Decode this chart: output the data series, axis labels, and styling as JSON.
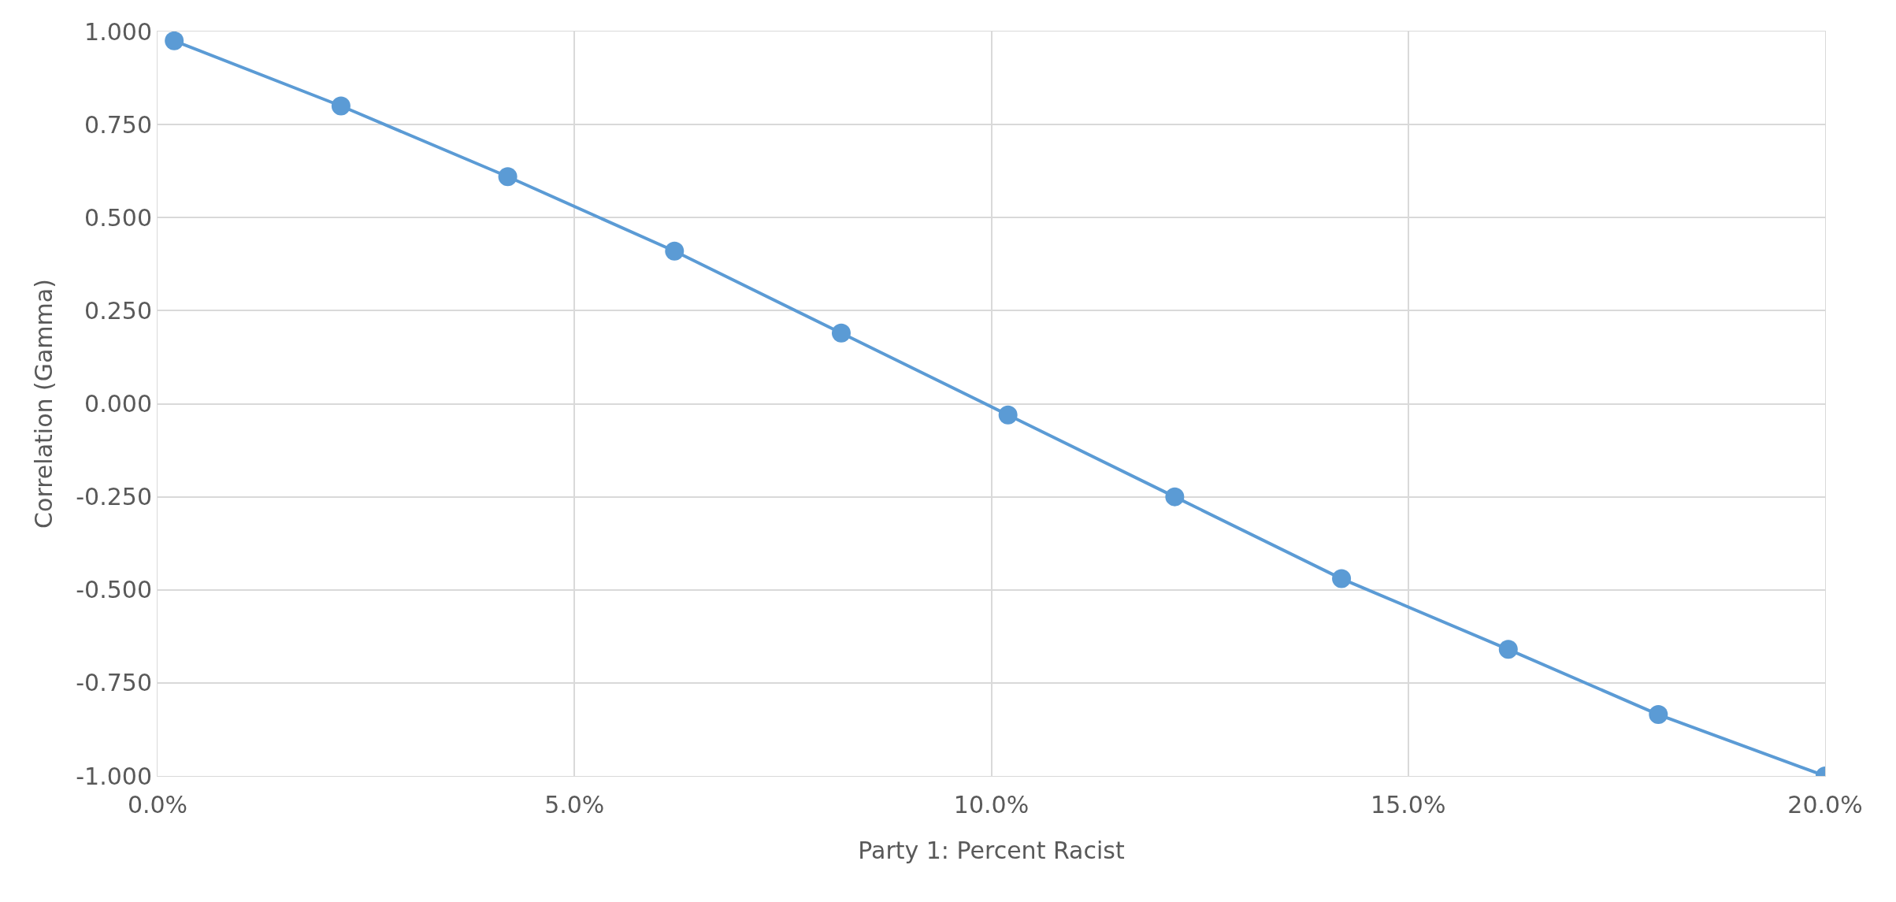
{
  "chart_data": {
    "type": "line",
    "xlabel": "Party 1: Percent Racist",
    "ylabel": "Correlation (Gamma)",
    "x": [
      0.2,
      2.2,
      4.2,
      6.2,
      8.2,
      10.2,
      12.2,
      14.2,
      16.2,
      18.0,
      20.0
    ],
    "series": [
      {
        "color": "#5b9bd5",
        "values": [
          0.975,
          0.8,
          0.61,
          0.41,
          0.19,
          -0.03,
          -0.25,
          -0.47,
          -0.66,
          -0.835,
          -1.0
        ]
      }
    ],
    "xlim": [
      0,
      20
    ],
    "ylim": [
      -1,
      1
    ],
    "xticks": [
      {
        "value": 0,
        "label": "0.0%"
      },
      {
        "value": 5,
        "label": "5.0%"
      },
      {
        "value": 10,
        "label": "10.0%"
      },
      {
        "value": 15,
        "label": "15.0%"
      },
      {
        "value": 20,
        "label": "20.0%"
      }
    ],
    "yticks": [
      {
        "value": 1,
        "label": "1.000"
      },
      {
        "value": 0.75,
        "label": "0.750"
      },
      {
        "value": 0.5,
        "label": "0.500"
      },
      {
        "value": 0.25,
        "label": "0.250"
      },
      {
        "value": 0,
        "label": "0.000"
      },
      {
        "value": -0.25,
        "label": "-0.250"
      },
      {
        "value": -0.5,
        "label": "-0.500"
      },
      {
        "value": -0.75,
        "label": "-0.750"
      },
      {
        "value": -1,
        "label": "-1.000"
      }
    ],
    "grid": true,
    "marker": "circle",
    "line_style": "solid"
  }
}
